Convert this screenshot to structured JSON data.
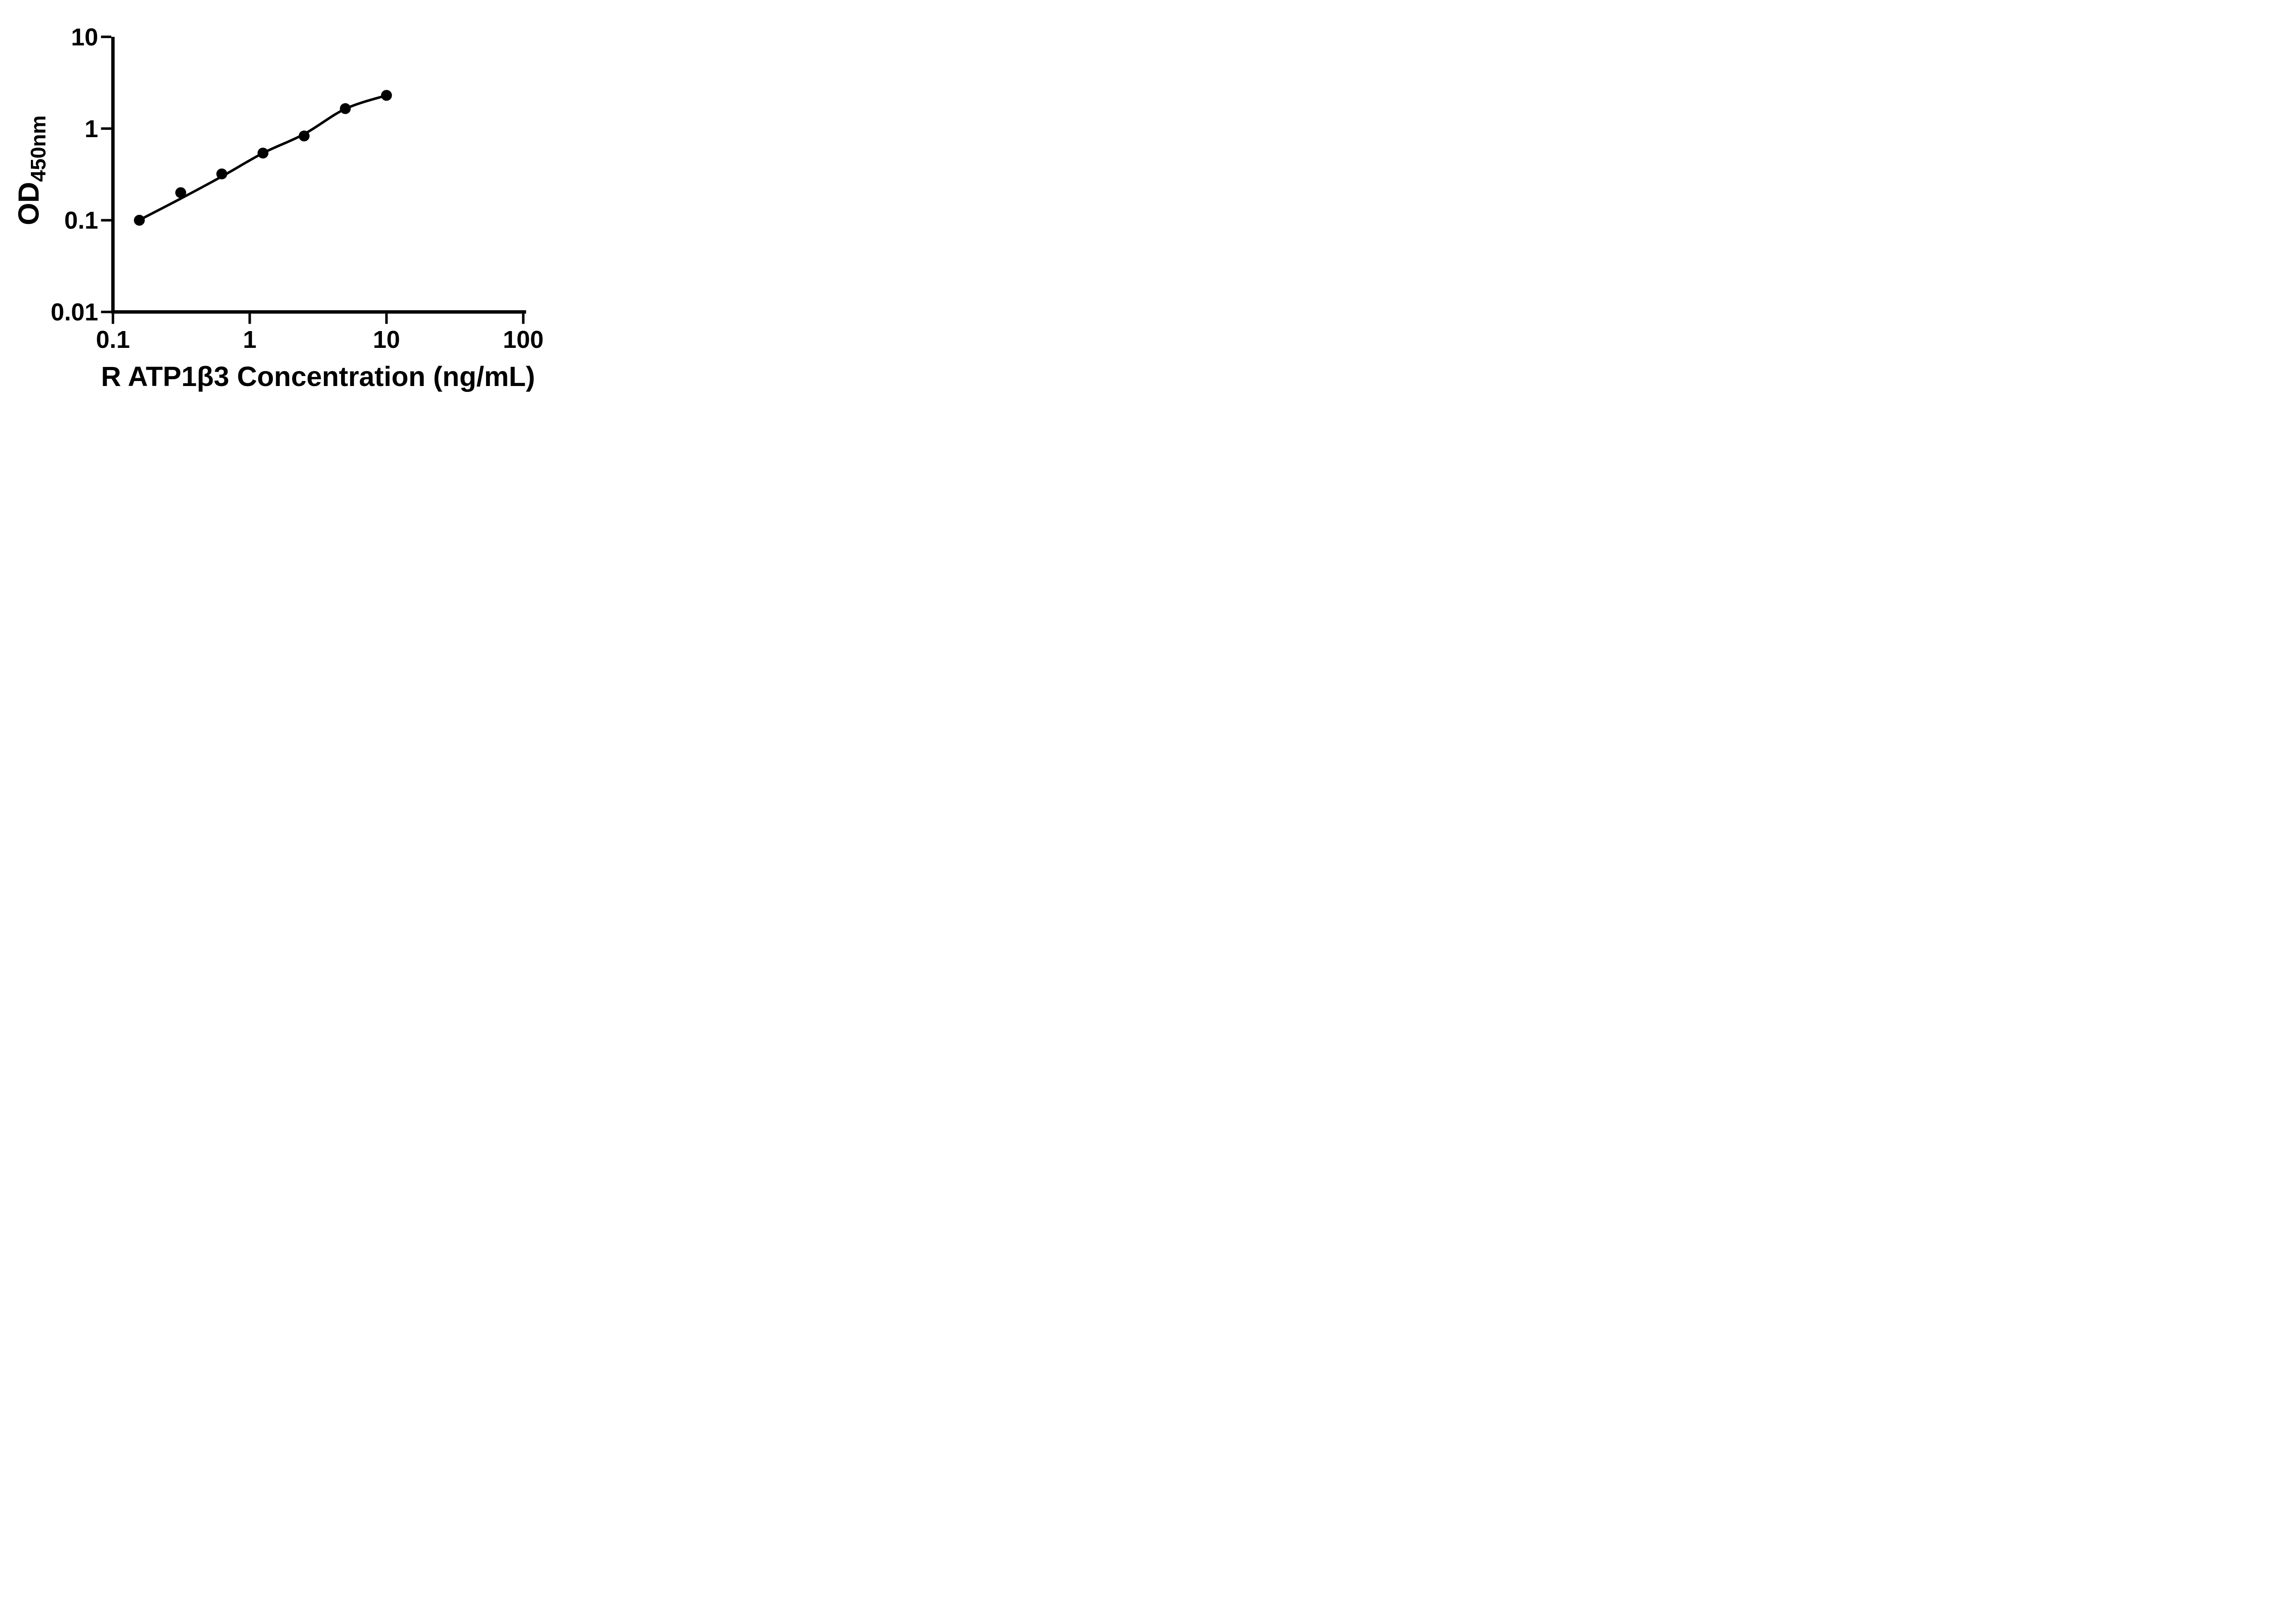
{
  "figure": {
    "background": "#ffffff",
    "axis_color": "#000000",
    "marker_color": "#000000",
    "curve_color": "#000000"
  },
  "chart_data": {
    "type": "scatter",
    "title": "",
    "xlabel": "R ATP1β3 Concentration (ng/mL)",
    "ylabel_main": "OD",
    "ylabel_sub": "450nm",
    "x_scale": "log",
    "y_scale": "log",
    "xlim": [
      0.1,
      100
    ],
    "ylim": [
      0.01,
      10
    ],
    "grid": false,
    "legend": "none",
    "x_ticks": [
      {
        "value": 0.1,
        "label": "0.1"
      },
      {
        "value": 1,
        "label": "1"
      },
      {
        "value": 10,
        "label": "10"
      },
      {
        "value": 100,
        "label": "100"
      }
    ],
    "y_ticks": [
      {
        "value": 10,
        "label": "10"
      },
      {
        "value": 1,
        "label": "1"
      },
      {
        "value": 0.1,
        "label": "0.1"
      },
      {
        "value": 0.01,
        "label": "0.01"
      }
    ],
    "series": [
      {
        "marker": "filled-circle",
        "points": [
          {
            "x": 0.156,
            "y": 0.1
          },
          {
            "x": 0.313,
            "y": 0.2
          },
          {
            "x": 0.625,
            "y": 0.32
          },
          {
            "x": 1.25,
            "y": 0.54
          },
          {
            "x": 2.5,
            "y": 0.83
          },
          {
            "x": 5,
            "y": 1.65
          },
          {
            "x": 10,
            "y": 2.3
          }
        ]
      }
    ],
    "fit_curve": [
      {
        "x": 0.165,
        "y": 0.105
      },
      {
        "x": 0.3125,
        "y": 0.172
      },
      {
        "x": 0.625,
        "y": 0.3
      },
      {
        "x": 1.25,
        "y": 0.54
      },
      {
        "x": 2.5,
        "y": 0.87
      },
      {
        "x": 5,
        "y": 1.64
      },
      {
        "x": 10,
        "y": 2.3
      }
    ]
  }
}
